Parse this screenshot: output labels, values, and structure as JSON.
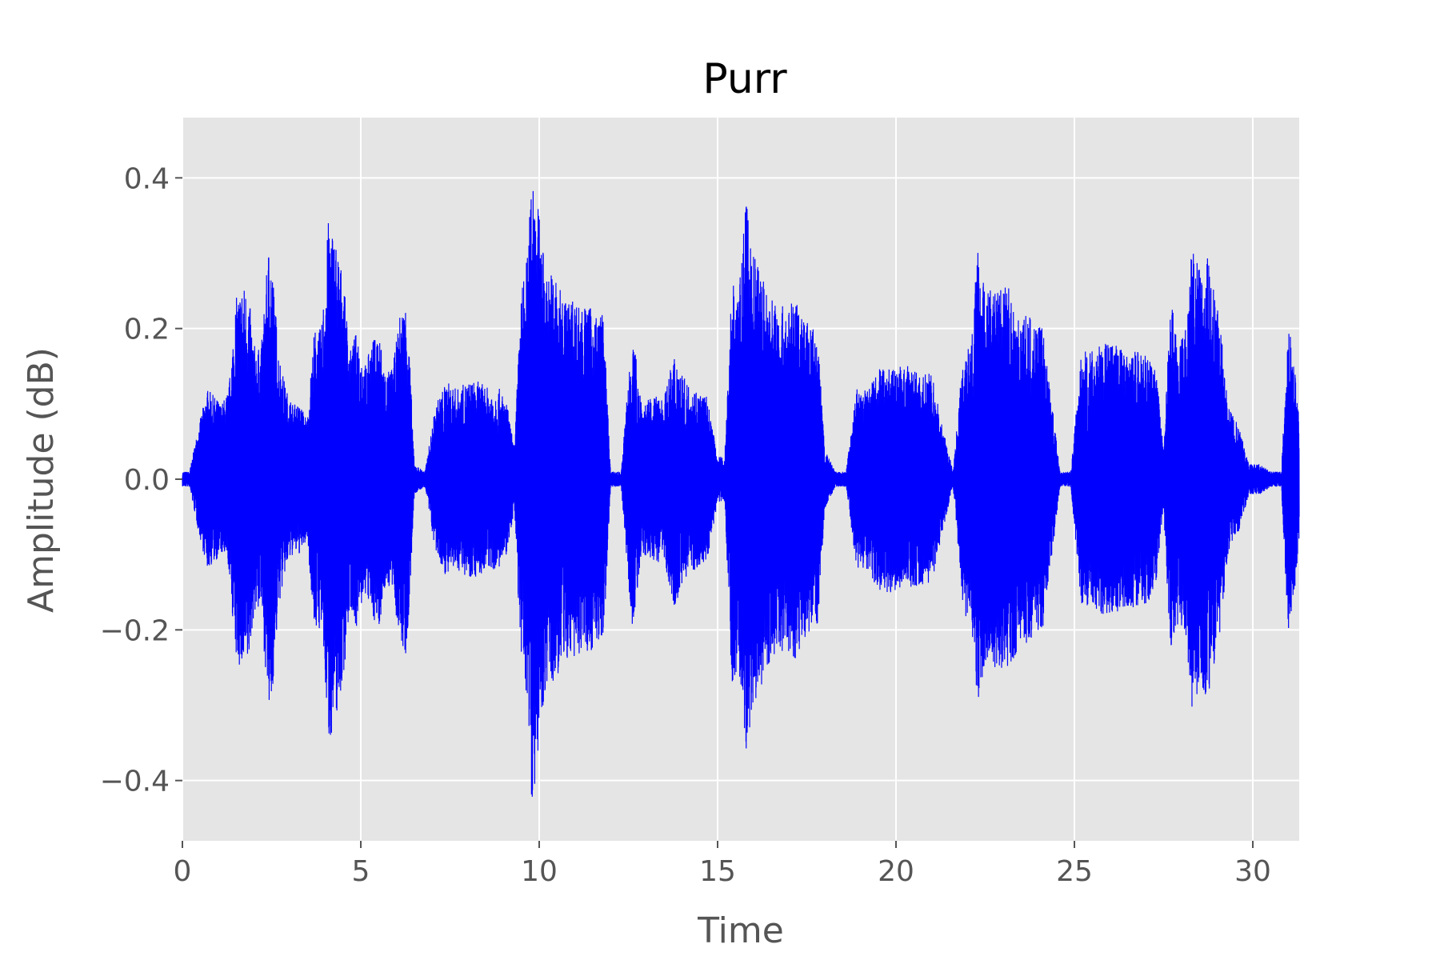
{
  "chart_data": {
    "type": "line",
    "title": "Purr",
    "xlabel": "Time",
    "ylabel": "Amplitude (dB)",
    "xlim": [
      0,
      31.3
    ],
    "ylim": [
      -0.48,
      0.48
    ],
    "x_ticks": [
      0,
      5,
      10,
      15,
      20,
      25,
      30
    ],
    "x_tick_labels": [
      "0",
      "5",
      "10",
      "15",
      "20",
      "25",
      "30"
    ],
    "y_ticks": [
      -0.4,
      -0.2,
      0.0,
      0.2,
      0.4
    ],
    "y_tick_labels": [
      "−0.4",
      "−0.2",
      "0.0",
      "0.2",
      "0.4"
    ],
    "grid": true,
    "colors": {
      "line": "#0000ff",
      "plot_background": "#e5e5e5",
      "grid": "#ffffff",
      "tick_text": "#555555"
    },
    "series": [
      {
        "x": [
          0.0,
          0.2,
          0.45,
          0.7,
          0.9,
          1.1,
          1.3,
          1.5,
          1.7,
          1.85,
          2.0,
          2.2,
          2.45,
          2.7,
          2.9,
          3.1,
          3.3,
          3.5,
          3.7,
          3.9,
          4.1,
          4.3,
          4.5,
          4.7,
          4.9,
          5.1,
          5.3,
          5.5,
          5.7,
          5.9,
          6.1,
          6.3,
          6.5,
          6.8,
          7.1,
          7.4,
          7.7,
          8.0,
          8.3,
          8.6,
          8.9,
          9.1,
          9.3,
          9.5,
          9.7,
          9.8,
          10.0,
          10.2,
          10.4,
          10.6,
          10.8,
          11.0,
          11.2,
          11.4,
          11.6,
          11.8,
          12.0,
          12.3,
          12.6,
          12.9,
          13.2,
          13.5,
          13.8,
          14.1,
          14.4,
          14.7,
          15.0,
          15.2,
          15.4,
          15.6,
          15.8,
          16.0,
          16.2,
          16.4,
          16.6,
          16.8,
          17.0,
          17.2,
          17.4,
          17.6,
          17.8,
          18.0,
          18.3,
          18.6,
          18.9,
          19.2,
          19.5,
          19.8,
          20.1,
          20.4,
          20.7,
          21.0,
          21.3,
          21.6,
          21.9,
          22.1,
          22.3,
          22.5,
          22.7,
          22.9,
          23.1,
          23.3,
          23.5,
          23.7,
          23.9,
          24.1,
          24.3,
          24.6,
          24.9,
          25.2,
          25.5,
          25.8,
          26.1,
          26.4,
          26.7,
          27.0,
          27.3,
          27.5,
          27.7,
          27.9,
          28.1,
          28.3,
          28.5,
          28.7,
          28.9,
          29.1,
          29.3,
          29.6,
          29.9,
          30.2,
          30.5,
          30.8,
          31.0,
          31.3
        ],
        "amplitude": [
          0.01,
          0.01,
          0.07,
          0.12,
          0.11,
          0.1,
          0.12,
          0.24,
          0.26,
          0.25,
          0.18,
          0.17,
          0.33,
          0.17,
          0.12,
          0.1,
          0.1,
          0.08,
          0.2,
          0.2,
          0.35,
          0.32,
          0.27,
          0.17,
          0.2,
          0.15,
          0.18,
          0.2,
          0.14,
          0.15,
          0.22,
          0.24,
          0.02,
          0.01,
          0.1,
          0.13,
          0.12,
          0.13,
          0.13,
          0.12,
          0.12,
          0.1,
          0.04,
          0.25,
          0.31,
          0.44,
          0.35,
          0.27,
          0.28,
          0.25,
          0.24,
          0.24,
          0.23,
          0.23,
          0.22,
          0.22,
          0.01,
          0.01,
          0.2,
          0.1,
          0.11,
          0.11,
          0.17,
          0.13,
          0.12,
          0.11,
          0.03,
          0.03,
          0.27,
          0.25,
          0.37,
          0.3,
          0.28,
          0.25,
          0.24,
          0.23,
          0.23,
          0.24,
          0.22,
          0.2,
          0.2,
          0.04,
          0.01,
          0.01,
          0.12,
          0.12,
          0.15,
          0.15,
          0.15,
          0.15,
          0.14,
          0.14,
          0.07,
          0.01,
          0.18,
          0.19,
          0.31,
          0.25,
          0.26,
          0.25,
          0.26,
          0.24,
          0.21,
          0.22,
          0.2,
          0.21,
          0.13,
          0.01,
          0.01,
          0.17,
          0.17,
          0.18,
          0.18,
          0.17,
          0.17,
          0.17,
          0.14,
          0.04,
          0.24,
          0.2,
          0.2,
          0.31,
          0.28,
          0.3,
          0.26,
          0.2,
          0.1,
          0.07,
          0.02,
          0.02,
          0.01,
          0.01,
          0.21,
          0.1,
          0.1
        ]
      }
    ]
  }
}
